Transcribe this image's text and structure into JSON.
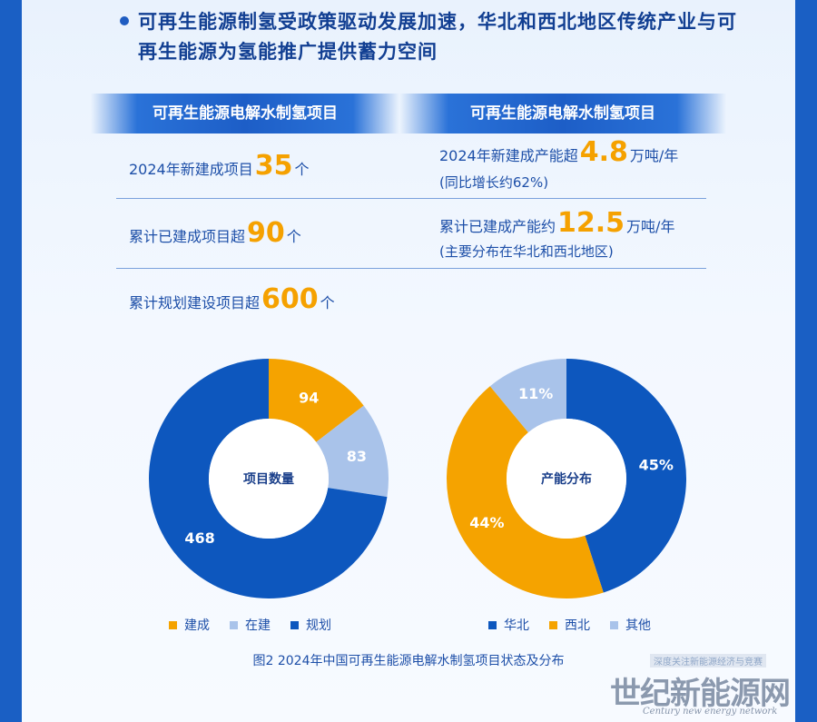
{
  "header": {
    "headline": "可再生能源制氢受政策驱动发展加速，华北和西北地区传统产业与可再生能源为氢能推广提供蓄力空间"
  },
  "table": {
    "left_header": "可再生能源电解水制氢项目",
    "right_header": "可再生能源电解水制氢项目",
    "left_rows": [
      {
        "prefix": "2024年新建成项目",
        "value": "35",
        "suffix": "个"
      },
      {
        "prefix": "累计已建成项目超",
        "value": "90",
        "suffix": "个"
      },
      {
        "prefix": "累计规划建设项目超",
        "value": "600",
        "suffix": "个"
      }
    ],
    "right_rows": [
      {
        "prefix": "2024年新建成产能超",
        "value": "4.8",
        "suffix": "万吨/年",
        "note": "(同比增长约62%)"
      },
      {
        "prefix": "累计已建成产能约",
        "value": "12.5",
        "suffix": "万吨/年",
        "note": "(主要分布在华北和西北地区)"
      }
    ]
  },
  "colors": {
    "orange": "#f5a300",
    "light_blue": "#a9c3ea",
    "dark_blue": "#0d57be"
  },
  "chart_data": [
    {
      "type": "pie",
      "center_label": "项目数量",
      "categories": [
        "建成",
        "在建",
        "规划"
      ],
      "values": [
        94,
        83,
        468
      ],
      "labels": [
        "94",
        "83",
        "468"
      ],
      "colors": [
        "#f5a300",
        "#a9c3ea",
        "#0d57be"
      ]
    },
    {
      "type": "pie",
      "center_label": "产能分布",
      "categories": [
        "华北",
        "西北",
        "其他"
      ],
      "values": [
        45,
        44,
        11
      ],
      "labels": [
        "45%",
        "44%",
        "11%"
      ],
      "colors": [
        "#0d57be",
        "#f5a300",
        "#a9c3ea"
      ]
    }
  ],
  "caption": "图2 2024年中国可再生能源电解水制氢项目状态及分布",
  "watermark": {
    "line1": "深度关注新能源经济与竞赛",
    "line2": "世纪新能源网",
    "line3": "Century new energy network"
  }
}
